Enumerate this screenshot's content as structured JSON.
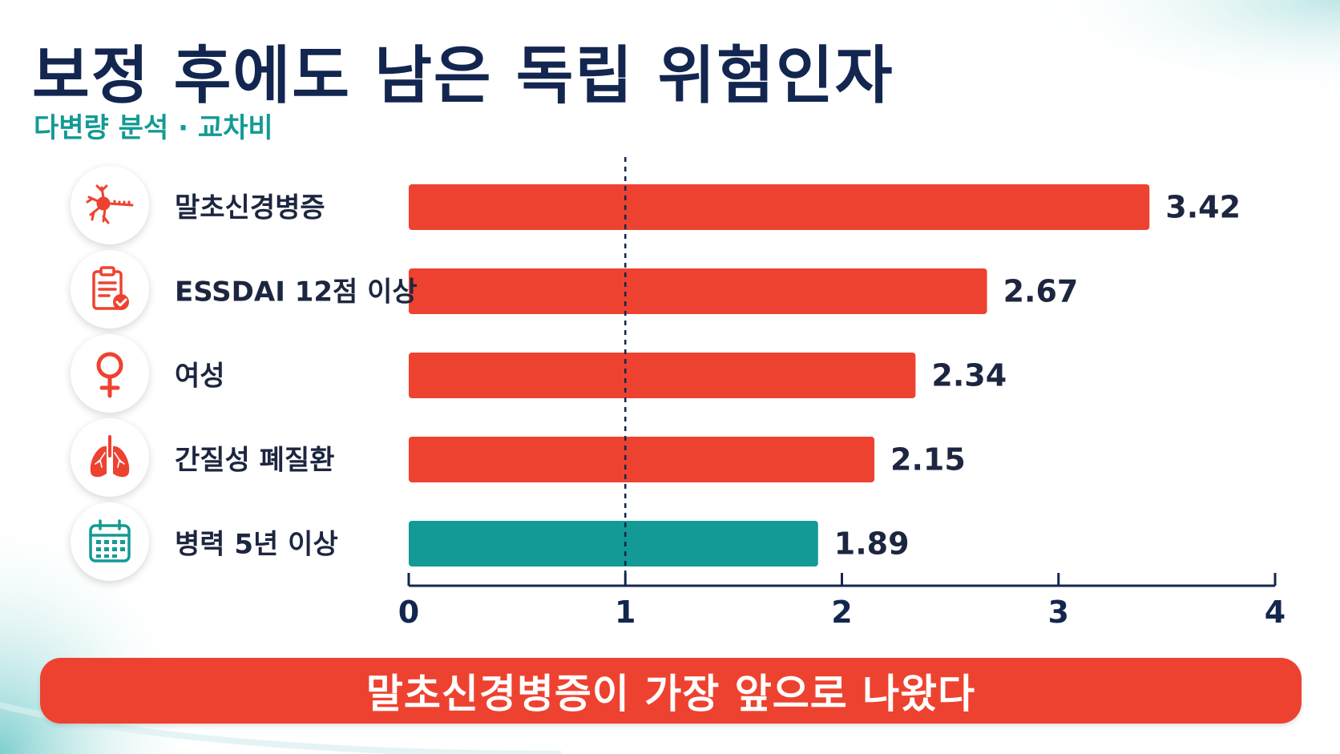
{
  "header": {
    "title": "보정 후에도 남은 독립 위험인자",
    "subtitle": "다변량 분석 · 교차비"
  },
  "colors": {
    "primary_bar": "#ee4230",
    "secondary_bar": "#139a94",
    "title": "#13264f",
    "axis": "#13264f"
  },
  "rows": [
    {
      "label": "말초신경병증",
      "icon": "neuron-icon"
    },
    {
      "label": "ESSDAI 12점 이상",
      "icon": "clipboard-check-icon"
    },
    {
      "label": "여성",
      "icon": "female-symbol-icon"
    },
    {
      "label": "간질성 폐질환",
      "icon": "lungs-icon"
    },
    {
      "label": "병력 5년 이상",
      "icon": "calendar-icon"
    }
  ],
  "chart_data": {
    "type": "bar",
    "orientation": "horizontal",
    "categories": [
      "말초신경병증",
      "ESSDAI 12점 이상",
      "여성",
      "간질성 폐질환",
      "병력 5년 이상"
    ],
    "values": [
      3.42,
      2.67,
      2.34,
      2.15,
      1.89
    ],
    "value_labels": [
      "3.42",
      "2.67",
      "2.34",
      "2.15",
      "1.89"
    ],
    "bar_colors": [
      "#ee4230",
      "#ee4230",
      "#ee4230",
      "#ee4230",
      "#139a94"
    ],
    "xlim": [
      0,
      4
    ],
    "xticks": [
      "0",
      "1",
      "2",
      "3",
      "4"
    ],
    "reference_line": 1,
    "reference_line_style": "dashed",
    "title": "보정 후에도 남은 독립 위험인자",
    "subtitle": "다변량 분석 · 교차비",
    "xlabel": "",
    "ylabel": "",
    "grid": false
  },
  "banner": {
    "text": "말초신경병증이 가장 앞으로 나왔다"
  }
}
